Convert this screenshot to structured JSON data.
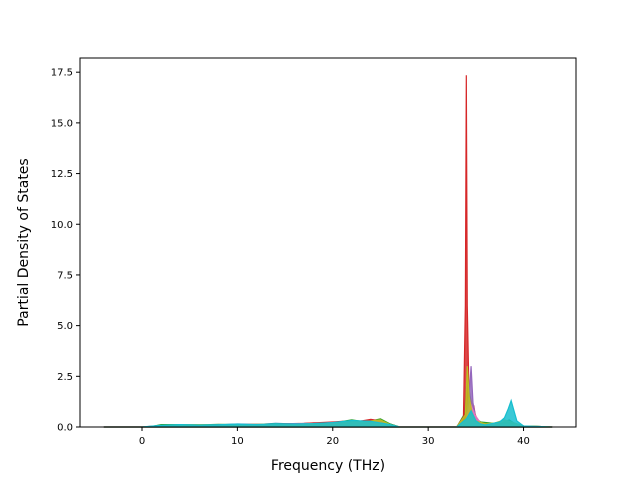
{
  "chart_data": {
    "type": "area",
    "title": "",
    "xlabel": "Frequency (THz)",
    "ylabel": "Partial Density of States",
    "xlim": [
      -6.5,
      45.5
    ],
    "ylim": [
      0,
      18.2
    ],
    "xticks": [
      0,
      10,
      20,
      30,
      40
    ],
    "xtick_labels": [
      "0",
      "10",
      "20",
      "30",
      "40"
    ],
    "yticks": [
      0,
      2.5,
      5,
      7.5,
      10,
      12.5,
      15,
      17.5
    ],
    "ytick_labels": [
      "0.0",
      "2.5",
      "5.0",
      "7.5",
      "10.0",
      "12.5",
      "15.0",
      "17.5"
    ],
    "grid": false,
    "legend": "none",
    "series": [
      {
        "color": "#1f77b4",
        "x": [
          -4,
          0,
          1,
          2,
          4,
          6,
          8,
          10,
          12,
          14,
          16,
          18,
          20,
          21,
          22,
          23,
          24,
          25,
          26,
          27,
          33,
          33.8,
          34,
          34.3,
          34.6,
          35,
          36,
          37,
          38,
          38.5,
          39,
          40,
          43
        ],
        "y": [
          0,
          0,
          0.02,
          0.1,
          0.1,
          0.12,
          0.1,
          0.15,
          0.12,
          0.18,
          0.15,
          0.2,
          0.18,
          0.22,
          0.3,
          0.25,
          0.35,
          0.28,
          0.15,
          0,
          0,
          0.5,
          2.0,
          1.0,
          0.6,
          0.2,
          0.1,
          0.2,
          0.15,
          0.3,
          0.1,
          0.05,
          0
        ]
      },
      {
        "color": "#ff7f0e",
        "x": [
          -4,
          0,
          1,
          3,
          5,
          7,
          9,
          11,
          13,
          15,
          17,
          19,
          21,
          22,
          23,
          24,
          25,
          26,
          27,
          33,
          33.9,
          34.1,
          34.4,
          34.8,
          35.2,
          36,
          37,
          38,
          39,
          40,
          43
        ],
        "y": [
          0,
          0,
          0.03,
          0.08,
          0.1,
          0.09,
          0.12,
          0.1,
          0.15,
          0.14,
          0.16,
          0.18,
          0.2,
          0.25,
          0.3,
          0.22,
          0.3,
          0.12,
          0,
          0,
          0.3,
          2.6,
          1.5,
          0.8,
          0.3,
          0.15,
          0.1,
          0.2,
          0.12,
          0.05,
          0
        ]
      },
      {
        "color": "#2ca02c",
        "x": [
          -4,
          0,
          1,
          2,
          4,
          6,
          8,
          10,
          12,
          14,
          16,
          18,
          20,
          22,
          23,
          24,
          25,
          26,
          27,
          33,
          34,
          34.3,
          34.7,
          35.5,
          36.5,
          37.5,
          38.5,
          39,
          40,
          43
        ],
        "y": [
          0,
          0,
          0.02,
          0.12,
          0.11,
          0.1,
          0.13,
          0.12,
          0.1,
          0.16,
          0.14,
          0.15,
          0.2,
          0.35,
          0.28,
          0.3,
          0.4,
          0.15,
          0,
          0,
          0.8,
          1.8,
          0.5,
          0.25,
          0.2,
          0.15,
          0.35,
          0.2,
          0.05,
          0
        ]
      },
      {
        "color": "#d62728",
        "x": [
          -4,
          0,
          2,
          5,
          8,
          11,
          14,
          17,
          20,
          21,
          22,
          23,
          24,
          25,
          26,
          27,
          33,
          33.7,
          33.9,
          34.0,
          34.1,
          34.3,
          34.5,
          34.8,
          35,
          35.5,
          36,
          37,
          38,
          39,
          40,
          43
        ],
        "y": [
          0,
          0,
          0.05,
          0.08,
          0.1,
          0.12,
          0.15,
          0.18,
          0.25,
          0.28,
          0.2,
          0.3,
          0.38,
          0.3,
          0.1,
          0,
          0,
          0.5,
          6.0,
          17.35,
          6.0,
          1.2,
          0.8,
          1.0,
          0.4,
          0.2,
          0.1,
          0.12,
          0.1,
          0.08,
          0.03,
          0
        ]
      },
      {
        "color": "#9467bd",
        "x": [
          -4,
          0,
          2,
          4,
          6,
          8,
          10,
          12,
          14,
          16,
          18,
          20,
          22,
          24,
          25,
          26,
          27,
          33,
          34,
          34.3,
          34.5,
          34.7,
          35,
          35.5,
          36,
          37,
          38,
          39,
          40,
          43
        ],
        "y": [
          0,
          0,
          0.06,
          0.09,
          0.08,
          0.1,
          0.12,
          0.14,
          0.13,
          0.17,
          0.15,
          0.22,
          0.3,
          0.25,
          0.3,
          0.1,
          0,
          0,
          0.4,
          1.6,
          3.0,
          1.2,
          0.4,
          0.15,
          0.1,
          0.08,
          0.12,
          0.06,
          0.02,
          0
        ]
      },
      {
        "color": "#e377c2",
        "x": [
          -4,
          0,
          2,
          4,
          7,
          10,
          13,
          16,
          19,
          21,
          23,
          25,
          26,
          27,
          33,
          34,
          34.4,
          34.9,
          35.5,
          36.5,
          38,
          39,
          40,
          43
        ],
        "y": [
          0,
          0,
          0.04,
          0.07,
          0.09,
          0.1,
          0.12,
          0.14,
          0.18,
          0.2,
          0.25,
          0.22,
          0.08,
          0,
          0,
          0.3,
          1.2,
          0.6,
          0.2,
          0.1,
          0.1,
          0.08,
          0.02,
          0
        ]
      },
      {
        "color": "#bcbd22",
        "x": [
          -4,
          0,
          2,
          4,
          6,
          8,
          10,
          12,
          14,
          16,
          18,
          20,
          22,
          24,
          25,
          26,
          27,
          33,
          33.9,
          34.1,
          34.3,
          34.6,
          35,
          36,
          37,
          38,
          39,
          40,
          43
        ],
        "y": [
          0,
          0,
          0.05,
          0.1,
          0.12,
          0.09,
          0.11,
          0.13,
          0.15,
          0.12,
          0.16,
          0.2,
          0.28,
          0.3,
          0.35,
          0.12,
          0,
          0,
          0.6,
          3.0,
          1.5,
          0.7,
          0.3,
          0.15,
          0.2,
          0.35,
          0.2,
          0.05,
          0
        ]
      },
      {
        "color": "#17becf",
        "x": [
          -4,
          0,
          2,
          4,
          6,
          8,
          10,
          12,
          14,
          16,
          18,
          20,
          22,
          24,
          26,
          27,
          33,
          34,
          34.5,
          35,
          35.5,
          36,
          37,
          37.5,
          38,
          38.4,
          38.7,
          39,
          39.3,
          40,
          43
        ],
        "y": [
          0,
          0,
          0.08,
          0.12,
          0.1,
          0.11,
          0.14,
          0.12,
          0.16,
          0.15,
          0.17,
          0.22,
          0.32,
          0.28,
          0.12,
          0,
          0,
          0.4,
          0.8,
          0.3,
          0.15,
          0.1,
          0.2,
          0.25,
          0.45,
          0.9,
          1.3,
          0.8,
          0.3,
          0.05,
          0
        ]
      }
    ]
  }
}
